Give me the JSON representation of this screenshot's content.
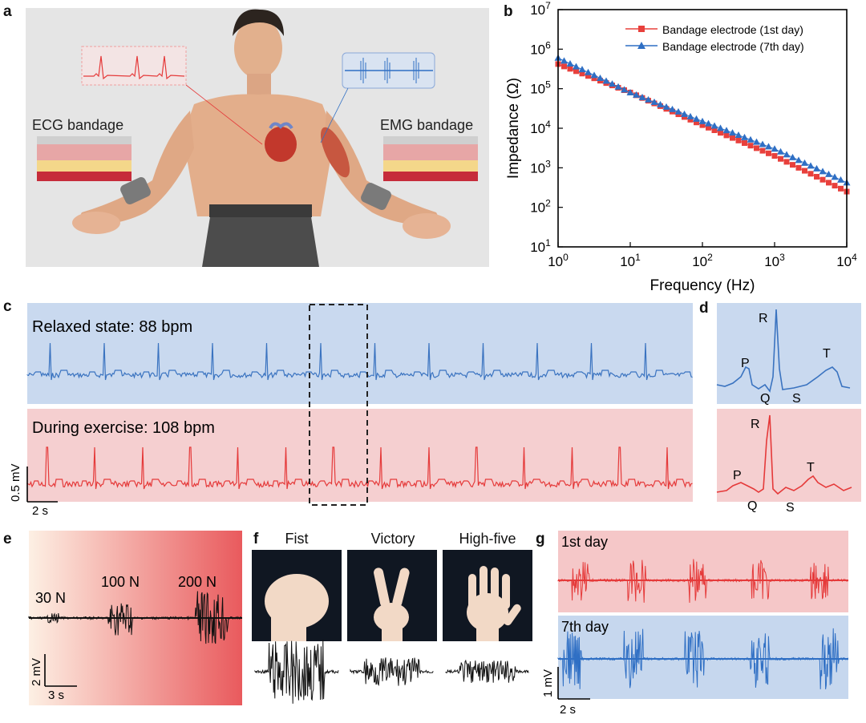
{
  "panel_labels": {
    "a": "a",
    "b": "b",
    "c": "c",
    "d": "d",
    "e": "e",
    "f": "f",
    "g": "g"
  },
  "panel_a": {
    "ecg_label": "ECG bandage",
    "emg_label": "EMG bandage"
  },
  "chart_data": [
    {
      "type": "line",
      "panel": "b",
      "xlabel": "Frequency (Hz)",
      "ylabel": "Impedance (Ω)",
      "xscale": "log",
      "yscale": "log",
      "xlim": [
        1,
        10000
      ],
      "ylim": [
        10,
        10000000
      ],
      "xticks": [
        "10^0",
        "10^1",
        "10^2",
        "10^3",
        "10^4"
      ],
      "yticks": [
        "10^1",
        "10^2",
        "10^3",
        "10^4",
        "10^5",
        "10^6",
        "10^7"
      ],
      "legend_position": "top-right",
      "series": [
        {
          "name": "Bandage electrode (1st day)",
          "color": "#e8403c",
          "marker": "square",
          "points": [
            [
              1,
              420000
            ],
            [
              10,
              80000
            ],
            [
              100,
              12000
            ],
            [
              1000,
              2000
            ],
            [
              10000,
              250
            ]
          ]
        },
        {
          "name": "Bandage electrode (7th day)",
          "color": "#2f6fc4",
          "marker": "triangle",
          "points": [
            [
              1,
              600000
            ],
            [
              10,
              80000
            ],
            [
              100,
              15000
            ],
            [
              1000,
              3000
            ],
            [
              10000,
              420
            ]
          ]
        }
      ]
    }
  ],
  "panel_c": {
    "relaxed_label": "Relaxed state: 88 bpm",
    "exercise_label": "During exercise: 108 bpm",
    "scale_y": "0.5 mV",
    "scale_x": "2 s",
    "relaxed_color": "#3a73c0",
    "exercise_color": "#e53a3a"
  },
  "panel_d": {
    "top": {
      "P": "P",
      "Q": "Q",
      "R": "R",
      "S": "S",
      "T": "T"
    },
    "bottom": {
      "P": "P",
      "Q": "Q",
      "R": "R",
      "S": "S",
      "T": "T"
    }
  },
  "panel_e": {
    "forces": [
      "30 N",
      "100 N",
      "200 N"
    ],
    "scale_y": "2 mV",
    "scale_x": "3 s"
  },
  "panel_f": {
    "gestures": [
      "Fist",
      "Victory",
      "High-five"
    ]
  },
  "panel_g": {
    "day1_label": "1st day",
    "day7_label": "7th day",
    "scale_y": "1 mV",
    "scale_x": "2 s"
  }
}
